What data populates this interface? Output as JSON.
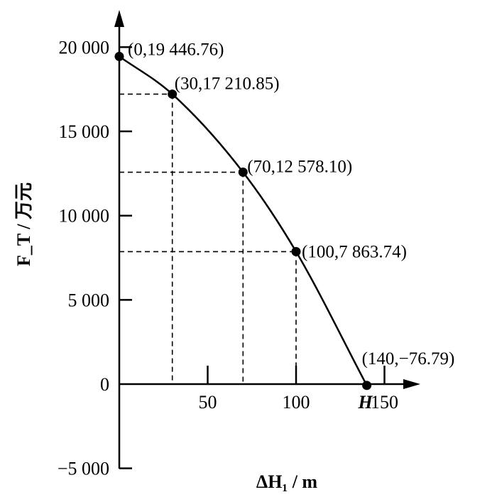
{
  "chart_data": {
    "type": "line",
    "title": "",
    "xlabel": "ΔH₁ / m",
    "ylabel": "F_T / 万元",
    "xlim": [
      0,
      170
    ],
    "ylim": [
      -5000,
      22500
    ],
    "grid": false,
    "x_ticks": [
      {
        "value": 50,
        "label": "50"
      },
      {
        "value": 100,
        "label": "100"
      },
      {
        "value": 150,
        "label": "150"
      }
    ],
    "x_marker": {
      "value": 140,
      "label": "H"
    },
    "y_ticks": [
      {
        "value": 20000,
        "label": "20 000"
      },
      {
        "value": 15000,
        "label": "15 000"
      },
      {
        "value": 10000,
        "label": "10 000"
      },
      {
        "value": 5000,
        "label": "5 000"
      },
      {
        "value": 0,
        "label": "0"
      },
      {
        "value": -5000,
        "label": "−5 000"
      }
    ],
    "series": [
      {
        "x": [
          0,
          30,
          70,
          100,
          140
        ],
        "y": [
          19446.76,
          17210.85,
          12578.1,
          7863.74,
          -76.79
        ]
      }
    ],
    "annotations": [
      {
        "x": 0,
        "y": 19446.76,
        "label": "(0,19 446.76)"
      },
      {
        "x": 30,
        "y": 17210.85,
        "label": "(30,17 210.85)"
      },
      {
        "x": 70,
        "y": 12578.1,
        "label": "(70,12 578.10)"
      },
      {
        "x": 100,
        "y": 7863.74,
        "label": "(100,7 863.74)"
      },
      {
        "x": 140,
        "y": -76.79,
        "label": "(140,−76.79)"
      }
    ],
    "guide_lines": [
      30,
      70,
      100
    ]
  }
}
